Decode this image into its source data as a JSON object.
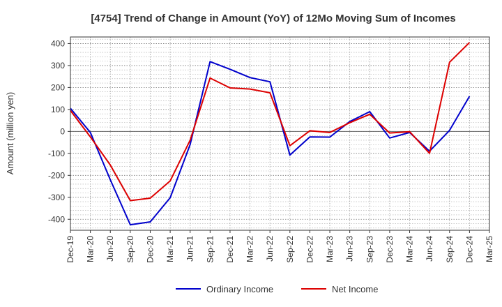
{
  "chart_data": {
    "type": "line",
    "title": "[4754]  Trend of Change in Amount (YoY) of 12Mo Moving Sum of Incomes",
    "xlabel": "",
    "ylabel": "Amount (million yen)",
    "ylim": [
      -450,
      430
    ],
    "yticks": [
      400,
      300,
      200,
      100,
      0,
      -100,
      -200,
      -300,
      -400
    ],
    "categories": [
      "Dec-19",
      "Mar-20",
      "Jun-20",
      "Sep-20",
      "Dec-20",
      "Mar-21",
      "Jun-21",
      "Sep-21",
      "Dec-21",
      "Mar-22",
      "Jun-22",
      "Sep-22",
      "Dec-22",
      "Mar-23",
      "Jun-23",
      "Sep-23",
      "Dec-23",
      "Mar-24",
      "Jun-24",
      "Sep-24",
      "Dec-24",
      "Mar-25"
    ],
    "series": [
      {
        "name": "Ordinary Income",
        "color": "#0000cc",
        "values": [
          105,
          -5,
          -220,
          -425,
          -412,
          -302,
          -60,
          318,
          283,
          245,
          226,
          -108,
          -25,
          -26,
          45,
          90,
          -30,
          -5,
          -90,
          5,
          160,
          null
        ]
      },
      {
        "name": "Net Income",
        "color": "#dd0000",
        "values": [
          95,
          -25,
          -153,
          -315,
          -304,
          -225,
          -40,
          243,
          198,
          193,
          176,
          -65,
          3,
          -5,
          40,
          78,
          -7,
          -1,
          -100,
          315,
          405,
          null
        ]
      }
    ],
    "grid": true,
    "legend": "bottom"
  }
}
